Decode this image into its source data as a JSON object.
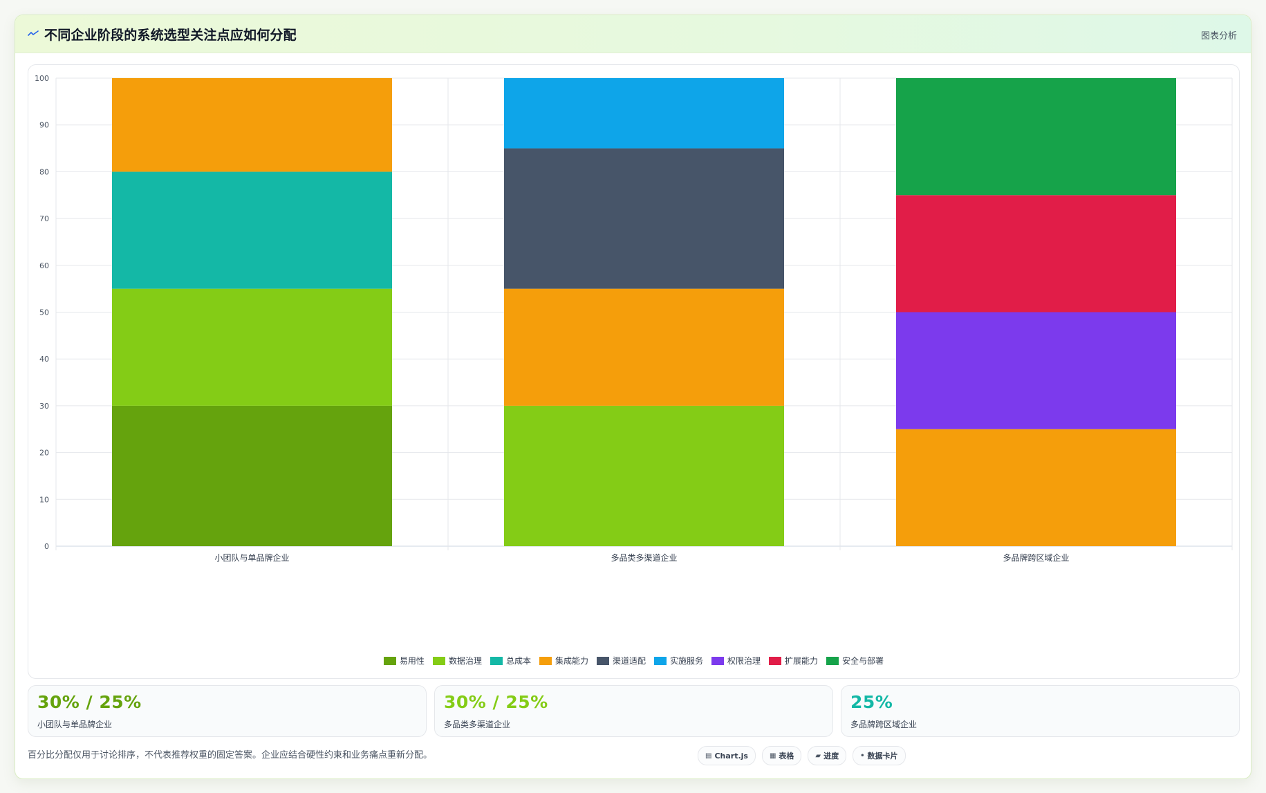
{
  "header": {
    "title": "不同企业阶段的系统选型关注点应如何分配",
    "action_label": "图表分析"
  },
  "chart_data": {
    "type": "bar",
    "stacked": true,
    "categories": [
      "小团队与单品牌企业",
      "多品类多渠道企业",
      "多品牌跨区域企业"
    ],
    "ylim": [
      0,
      100
    ],
    "yticks": [
      0,
      10,
      20,
      30,
      40,
      50,
      60,
      70,
      80,
      90,
      100
    ],
    "grid": true,
    "legend_position": "bottom",
    "series": [
      {
        "name": "易用性",
        "color": "#65a30d",
        "values": [
          30,
          0,
          0
        ]
      },
      {
        "name": "数据治理",
        "color": "#84cc16",
        "values": [
          25,
          30,
          0
        ]
      },
      {
        "name": "总成本",
        "color": "#14b8a6",
        "values": [
          25,
          0,
          0
        ]
      },
      {
        "name": "集成能力",
        "color": "#f59e0b",
        "values": [
          20,
          25,
          25
        ]
      },
      {
        "name": "渠道适配",
        "color": "#475569",
        "values": [
          0,
          30,
          0
        ]
      },
      {
        "name": "实施服务",
        "color": "#0ea5e9",
        "values": [
          0,
          15,
          0
        ]
      },
      {
        "name": "权限治理",
        "color": "#7c3aed",
        "values": [
          0,
          0,
          25
        ]
      },
      {
        "name": "扩展能力",
        "color": "#e11d48",
        "values": [
          0,
          0,
          25
        ]
      },
      {
        "name": "安全与部署",
        "color": "#16a34a",
        "values": [
          0,
          0,
          25
        ]
      }
    ]
  },
  "stats": [
    {
      "value": "30% / 25%",
      "label": "小团队与单品牌企业",
      "color": "#65a30d"
    },
    {
      "value": "30% / 25%",
      "label": "多品类多渠道企业",
      "color": "#84cc16"
    },
    {
      "value": "25%",
      "label": "多品牌跨区域企业",
      "color": "#14b8a6"
    }
  ],
  "footer": {
    "note": "百分比分配仅用于讨论排序，不代表推荐权重的固定答案。企业应结合硬性约束和业务痛点重新分配。",
    "tags": [
      {
        "icon": "▤",
        "label": "Chart.js"
      },
      {
        "icon": "▦",
        "label": "表格"
      },
      {
        "icon": "▰",
        "label": "进度"
      },
      {
        "icon": "•",
        "label": "数据卡片"
      }
    ]
  }
}
